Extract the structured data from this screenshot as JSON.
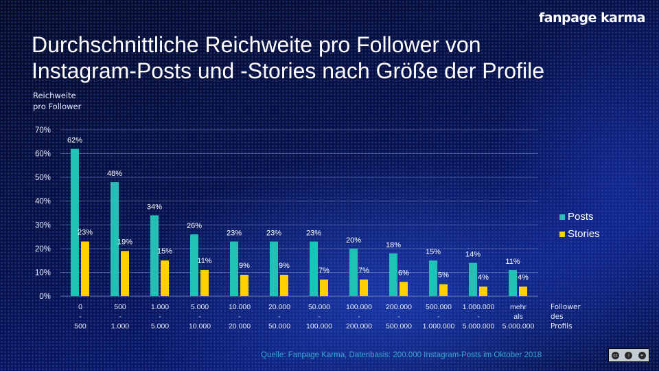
{
  "brand": "fanpage karma",
  "title": {
    "line1": "Durchschnittliche Reichweite pro Follower von",
    "line2": "Instagram-Posts und -Stories nach Größe der Profile"
  },
  "y_axis_title": {
    "line1": "Reichweite",
    "line2": "pro Follower"
  },
  "x_axis_title": {
    "line1": "Follower",
    "line2": "des",
    "line3": "Profils"
  },
  "source": "Quelle: Fanpage Karma, Datenbasis: 200.000 Instagram-Posts  im Oktober 2018",
  "license_badge": {
    "icons": [
      "cc-icon",
      "by-icon",
      "nd-icon"
    ],
    "text": "BY  ND"
  },
  "colors": {
    "posts": "#1fc2b4",
    "stories": "#ffd000",
    "grid": "#6f7fbf"
  },
  "chart_data": {
    "type": "bar",
    "categories": [
      [
        "0",
        "-",
        "500"
      ],
      [
        "500",
        "-",
        "1.000"
      ],
      [
        "1.000",
        "-",
        "5.000"
      ],
      [
        "5.000",
        "-",
        "10.000"
      ],
      [
        "10.000",
        "-",
        "20.000"
      ],
      [
        "20.000",
        "-",
        "50.000"
      ],
      [
        "50.000",
        "-",
        "100.000"
      ],
      [
        "100.000",
        "-",
        "200.000"
      ],
      [
        "200.000",
        "-",
        "500.000"
      ],
      [
        "500.000",
        "-",
        "1.000.000"
      ],
      [
        "1.000.000",
        "-",
        "5.000.000"
      ],
      [
        "mehr",
        "als",
        "5.000.000"
      ]
    ],
    "series": [
      {
        "name": "Posts",
        "values": [
          62,
          48,
          34,
          26,
          23,
          23,
          23,
          20,
          18,
          15,
          14,
          11
        ]
      },
      {
        "name": "Stories",
        "values": [
          23,
          19,
          15,
          11,
          9,
          9,
          7,
          7,
          6,
          5,
          4,
          4
        ]
      }
    ],
    "y_ticks": [
      "0%",
      "10%",
      "20%",
      "30%",
      "40%",
      "50%",
      "60%",
      "70%"
    ],
    "ylim": [
      0,
      70
    ],
    "value_suffix": "%",
    "grid": true,
    "legend_position": "right"
  }
}
